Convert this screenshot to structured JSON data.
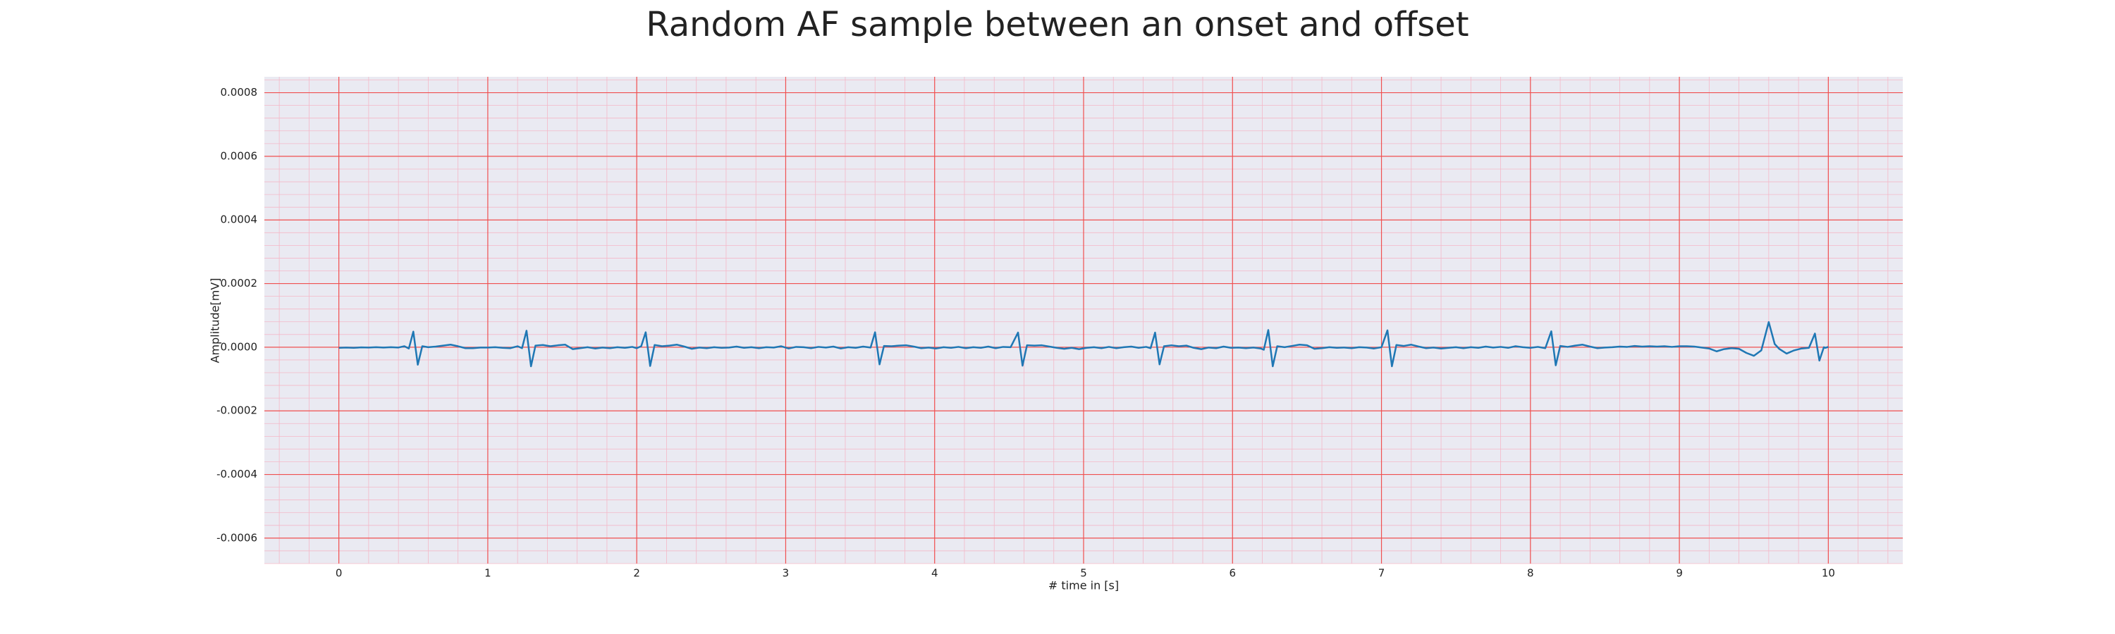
{
  "chart_data": {
    "type": "line",
    "title": "Random AF sample between an onset and offset",
    "x_label": "# time in [s]",
    "y_label": "Amplitude[mV]",
    "color": "#1f77b4",
    "xlim": [
      -0.5,
      10.5
    ],
    "ylim": [
      -0.00068,
      0.00085
    ],
    "xticks": [
      0,
      1,
      2,
      3,
      4,
      5,
      6,
      7,
      8,
      9,
      10
    ],
    "yticks": [
      -0.0006,
      -0.0004,
      -0.0002,
      {
        "value": 0,
        "label": "0.0000"
      },
      0.0002,
      0.0004,
      0.0006,
      0.0008
    ],
    "grid": true,
    "minor_grid": true,
    "x": [
      0.0,
      0.05,
      0.1,
      0.15,
      0.2,
      0.25,
      0.3,
      0.35,
      0.4,
      0.44,
      0.47,
      0.5,
      0.53,
      0.56,
      0.6,
      0.65,
      0.7,
      0.75,
      0.8,
      0.85,
      0.9,
      0.95,
      1.0,
      1.05,
      1.1,
      1.15,
      1.2,
      1.23,
      1.26,
      1.29,
      1.32,
      1.37,
      1.42,
      1.47,
      1.52,
      1.57,
      1.62,
      1.67,
      1.72,
      1.77,
      1.82,
      1.87,
      1.92,
      1.97,
      2.0,
      2.03,
      2.06,
      2.09,
      2.12,
      2.17,
      2.22,
      2.27,
      2.32,
      2.37,
      2.42,
      2.47,
      2.52,
      2.57,
      2.62,
      2.67,
      2.72,
      2.77,
      2.82,
      2.87,
      2.92,
      2.97,
      3.02,
      3.07,
      3.12,
      3.17,
      3.22,
      3.27,
      3.32,
      3.37,
      3.42,
      3.47,
      3.52,
      3.57,
      3.6,
      3.63,
      3.66,
      3.71,
      3.76,
      3.81,
      3.86,
      3.91,
      3.96,
      4.01,
      4.06,
      4.11,
      4.16,
      4.21,
      4.26,
      4.31,
      4.36,
      4.41,
      4.46,
      4.51,
      4.56,
      4.59,
      4.62,
      4.67,
      4.72,
      4.77,
      4.82,
      4.87,
      4.92,
      4.97,
      5.02,
      5.07,
      5.12,
      5.17,
      5.22,
      5.27,
      5.32,
      5.37,
      5.42,
      5.45,
      5.48,
      5.51,
      5.54,
      5.59,
      5.64,
      5.69,
      5.74,
      5.79,
      5.84,
      5.89,
      5.94,
      5.99,
      6.04,
      6.09,
      6.14,
      6.19,
      6.21,
      6.24,
      6.27,
      6.3,
      6.35,
      6.4,
      6.45,
      6.5,
      6.55,
      6.6,
      6.65,
      6.7,
      6.75,
      6.8,
      6.85,
      6.9,
      6.95,
      7.0,
      7.04,
      7.07,
      7.1,
      7.15,
      7.2,
      7.25,
      7.3,
      7.35,
      7.4,
      7.45,
      7.5,
      7.55,
      7.6,
      7.65,
      7.7,
      7.75,
      7.8,
      7.85,
      7.9,
      7.95,
      8.0,
      8.05,
      8.1,
      8.14,
      8.17,
      8.2,
      8.25,
      8.3,
      8.35,
      8.4,
      8.45,
      8.5,
      8.55,
      8.6,
      8.65,
      8.7,
      8.75,
      8.8,
      8.85,
      8.9,
      8.95,
      9.0,
      9.05,
      9.1,
      9.15,
      9.2,
      9.25,
      9.3,
      9.35,
      9.4,
      9.45,
      9.5,
      9.55,
      9.6,
      9.64,
      9.67,
      9.72,
      9.77,
      9.82,
      9.87,
      9.91,
      9.94,
      9.97,
      9.98,
      10.0
    ],
    "values": [
      -2e-06,
      -1e-06,
      -2e-06,
      -5e-07,
      -1e-06,
      0,
      -1e-06,
      0,
      -1e-06,
      3e-06,
      -4e-06,
      4.9e-05,
      -5.5e-05,
      3e-06,
      0,
      2e-06,
      5e-06,
      8e-06,
      3e-06,
      -3e-06,
      -3e-06,
      -1e-06,
      -1e-06,
      0,
      -2e-06,
      -3e-06,
      3e-06,
      -3e-06,
      5.2e-05,
      -6e-05,
      5e-06,
      7e-06,
      3e-06,
      6e-06,
      8e-06,
      -6e-06,
      -3e-06,
      0,
      -4e-06,
      -1e-06,
      -3e-06,
      0,
      -2e-06,
      1e-06,
      -3e-06,
      3e-06,
      4.7e-05,
      -5.9e-05,
      7e-06,
      3e-06,
      5e-06,
      8e-06,
      2e-06,
      -5e-06,
      -1e-06,
      -3e-06,
      0,
      -2e-06,
      -1e-06,
      2e-06,
      -2e-06,
      0,
      -3e-06,
      0,
      -1e-06,
      3e-06,
      -4e-06,
      1e-06,
      0,
      -3e-06,
      1e-06,
      -1e-06,
      2e-06,
      -4e-06,
      0,
      -2e-06,
      2e-06,
      -1e-06,
      4.7e-05,
      -5.4e-05,
      4e-06,
      3e-06,
      5e-06,
      6e-06,
      2e-06,
      -3e-06,
      -1e-06,
      -4e-06,
      0,
      -2e-06,
      1e-06,
      -3e-06,
      0,
      -2e-06,
      2e-06,
      -3e-06,
      1e-06,
      0,
      4.6e-05,
      -5.8e-05,
      6e-06,
      5e-06,
      6e-06,
      2e-06,
      -2e-06,
      -5e-06,
      -2e-06,
      -6e-06,
      -2e-06,
      0,
      -3e-06,
      1e-06,
      -3e-06,
      0,
      2e-06,
      -2e-06,
      1e-06,
      -3e-06,
      4.6e-05,
      -5.4e-05,
      3e-06,
      6e-06,
      3e-06,
      5e-06,
      -2e-06,
      -6e-06,
      -1e-06,
      -3e-06,
      2e-06,
      -2e-06,
      -1e-06,
      -3e-06,
      -1e-06,
      -4e-06,
      -8e-06,
      5.4e-05,
      -6e-05,
      3e-06,
      0,
      4e-06,
      8e-06,
      6e-06,
      -5e-06,
      -3e-06,
      0,
      -2e-06,
      -1e-06,
      -3e-06,
      0,
      -1e-06,
      -4e-06,
      0,
      5.3e-05,
      -6e-05,
      7e-06,
      4e-06,
      8e-06,
      2e-06,
      -3e-06,
      -1e-06,
      -4e-06,
      -2e-06,
      0,
      -3e-06,
      0,
      -2e-06,
      2e-06,
      -1e-06,
      1e-06,
      -2e-06,
      3e-06,
      0,
      -2e-06,
      1e-06,
      -3e-06,
      5e-05,
      -5.7e-05,
      4e-06,
      1e-06,
      5e-06,
      8e-06,
      2e-06,
      -3e-06,
      -1e-06,
      0,
      2e-06,
      1e-06,
      4e-06,
      2e-06,
      3e-06,
      2e-06,
      3e-06,
      1e-06,
      3e-06,
      3e-06,
      2e-06,
      -1e-06,
      -4e-06,
      -1.3e-05,
      -6e-06,
      -3e-06,
      -5e-06,
      -1.8e-05,
      -2.7e-05,
      -1e-05,
      7.9e-05,
      1e-05,
      -5e-06,
      -2e-05,
      -1e-05,
      -4e-06,
      -2e-06,
      4.3e-05,
      -4.2e-05,
      0,
      -2e-06,
      1e-06
    ]
  }
}
